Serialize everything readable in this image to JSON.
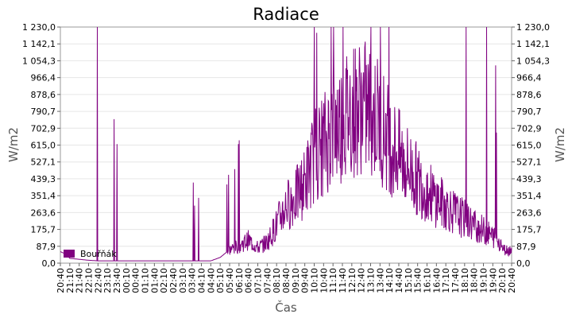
{
  "chart_data": {
    "type": "line",
    "title": "Radiace",
    "xlabel": "Čas",
    "ylabel": "W/m2",
    "ylabel_right": "W/m2",
    "ylim": [
      0,
      1230
    ],
    "y_ticks": [
      "0,0",
      "87,9",
      "175,7",
      "263,6",
      "351,4",
      "439,3",
      "527,1",
      "615,0",
      "702,9",
      "790,7",
      "878,6",
      "966,4",
      "1 054,3",
      "1 142,1",
      "1 230,0"
    ],
    "x_ticks": [
      "20:40",
      "21:10",
      "21:40",
      "22:10",
      "22:40",
      "23:10",
      "23:40",
      "00:10",
      "00:40",
      "01:10",
      "01:40",
      "02:10",
      "02:40",
      "03:10",
      "03:40",
      "04:10",
      "04:40",
      "05:10",
      "05:40",
      "06:10",
      "06:40",
      "07:10",
      "07:40",
      "08:10",
      "08:40",
      "09:10",
      "09:40",
      "10:10",
      "10:40",
      "11:10",
      "11:40",
      "12:10",
      "12:40",
      "13:10",
      "13:40",
      "14:10",
      "14:40",
      "15:10",
      "15:40",
      "16:10",
      "16:40",
      "17:10",
      "17:40",
      "18:10",
      "18:40",
      "19:10",
      "19:40",
      "20:10",
      "20:40"
    ],
    "grid": true,
    "legend_position": "bottom-left",
    "series": [
      {
        "name": "Bouřňák",
        "color": "#800080",
        "x": [
          "20:40",
          "21:00",
          "21:10",
          "21:40",
          "22:10",
          "22:40",
          "23:10",
          "23:40",
          "00:10",
          "00:40",
          "01:10",
          "01:40",
          "02:10",
          "02:40",
          "03:10",
          "03:40",
          "04:10",
          "04:40",
          "05:10",
          "05:40",
          "06:10",
          "06:40",
          "07:10",
          "07:40",
          "08:10",
          "08:40",
          "09:10",
          "09:40",
          "10:10",
          "10:40",
          "11:10",
          "11:40",
          "12:10",
          "12:40",
          "13:10",
          "13:40",
          "14:10",
          "14:40",
          "15:10",
          "15:40",
          "16:10",
          "16:40",
          "17:10",
          "17:40",
          "18:10",
          "18:40",
          "19:10",
          "19:40",
          "20:10",
          "20:40"
        ],
        "values": [
          60,
          45,
          25,
          20,
          15,
          12,
          12,
          12,
          12,
          12,
          12,
          12,
          12,
          12,
          12,
          12,
          12,
          12,
          30,
          70,
          90,
          120,
          80,
          110,
          200,
          300,
          340,
          420,
          560,
          620,
          700,
          750,
          800,
          820,
          790,
          740,
          640,
          560,
          500,
          430,
          380,
          330,
          300,
          260,
          230,
          200,
          170,
          140,
          100,
          70
        ],
        "spike_peaks": [
          1230,
          750,
          620,
          420,
          300,
          340,
          410,
          460,
          490,
          620,
          640,
          1230,
          1200,
          1230,
          1230,
          1230,
          1230,
          1230,
          1230,
          1230,
          1230,
          1030,
          680
        ]
      }
    ]
  }
}
